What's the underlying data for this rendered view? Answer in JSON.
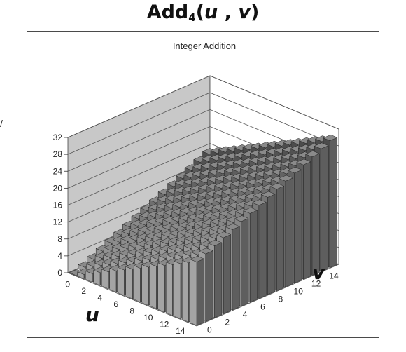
{
  "header": {
    "title_main": "Add",
    "title_sub": "4",
    "title_open": "(",
    "title_u": "u",
    "title_sep": " , ",
    "title_v": "v",
    "title_close": ")"
  },
  "left_mark": "/",
  "chart_data": {
    "type": "bar3d",
    "title": "Integer Addition",
    "function": "u + v",
    "u_label": "u",
    "v_label": "v",
    "u_values": [
      0,
      1,
      2,
      3,
      4,
      5,
      6,
      7,
      8,
      9,
      10,
      11,
      12,
      13,
      14,
      15
    ],
    "v_values": [
      0,
      1,
      2,
      3,
      4,
      5,
      6,
      7,
      8,
      9,
      10,
      11,
      12,
      13,
      14,
      15
    ],
    "u_ticks": [
      "0",
      "2",
      "4",
      "6",
      "8",
      "10",
      "12",
      "14"
    ],
    "v_ticks": [
      "0",
      "2",
      "4",
      "6",
      "8",
      "10",
      "12",
      "14"
    ],
    "z_ticks": [
      "0",
      "4",
      "8",
      "12",
      "16",
      "20",
      "24",
      "28",
      "32"
    ],
    "zlim": [
      0,
      32
    ],
    "grid": true,
    "colors": {
      "bar_front_near": "#a4a4a4",
      "bar_front_far": "#4c4c4c",
      "bar_top": "#8a8a8a",
      "bar_side": "#5e5e5e",
      "back_wall": "#ffffff",
      "side_wall": "#c8c8c8",
      "floor": "#e2e2e2",
      "grid": "#555555"
    }
  }
}
